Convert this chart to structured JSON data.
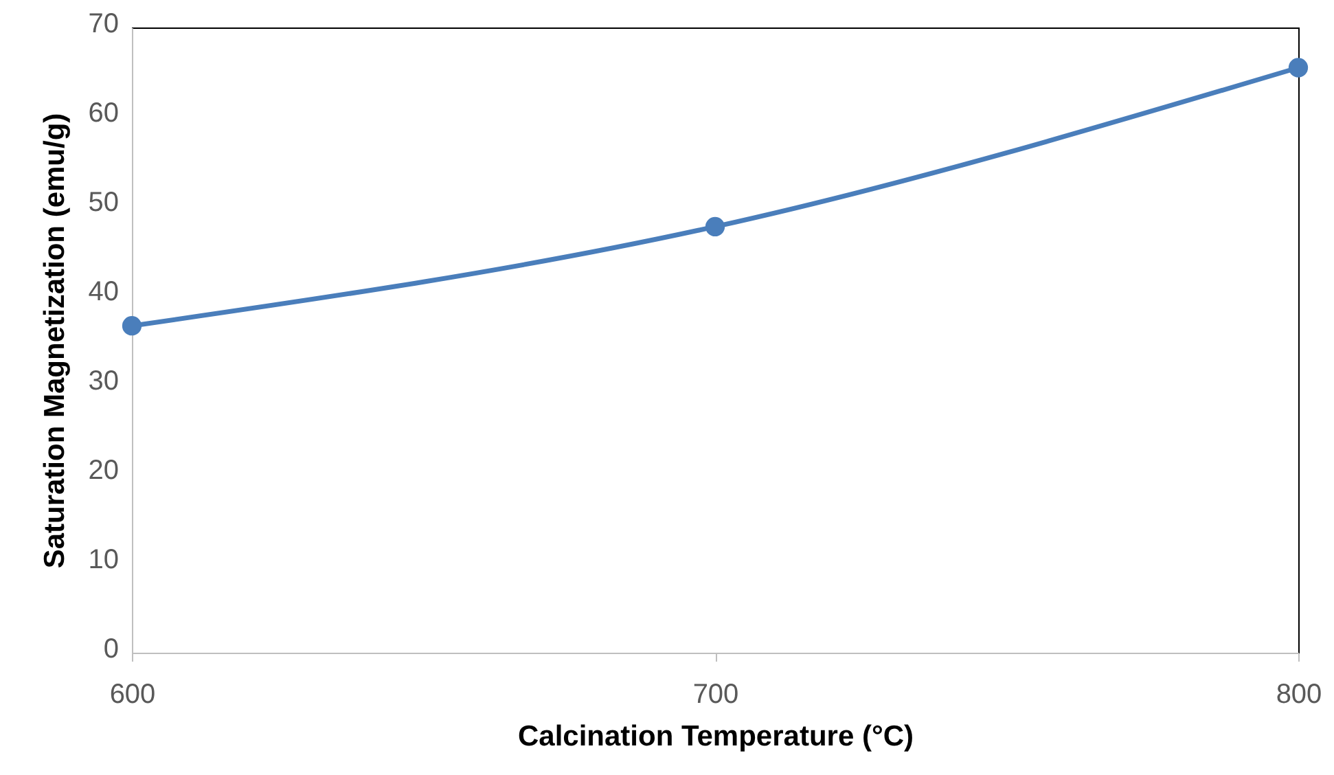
{
  "chart_data": {
    "type": "line",
    "xlabel": "Calcination Temperature (°C)",
    "ylabel": "Saturation Magnetization (emu/g)",
    "x": [
      600,
      700,
      800
    ],
    "series": [
      {
        "color": "#4a7ebb",
        "values": [
          36.6,
          47.7,
          65.5
        ]
      }
    ],
    "xlim": [
      600,
      800
    ],
    "xticks": [
      600,
      700,
      800
    ],
    "ylim": [
      0,
      70
    ],
    "yticks": [
      0,
      10,
      20,
      30,
      40,
      50,
      60,
      70
    ],
    "marker": "circle"
  }
}
